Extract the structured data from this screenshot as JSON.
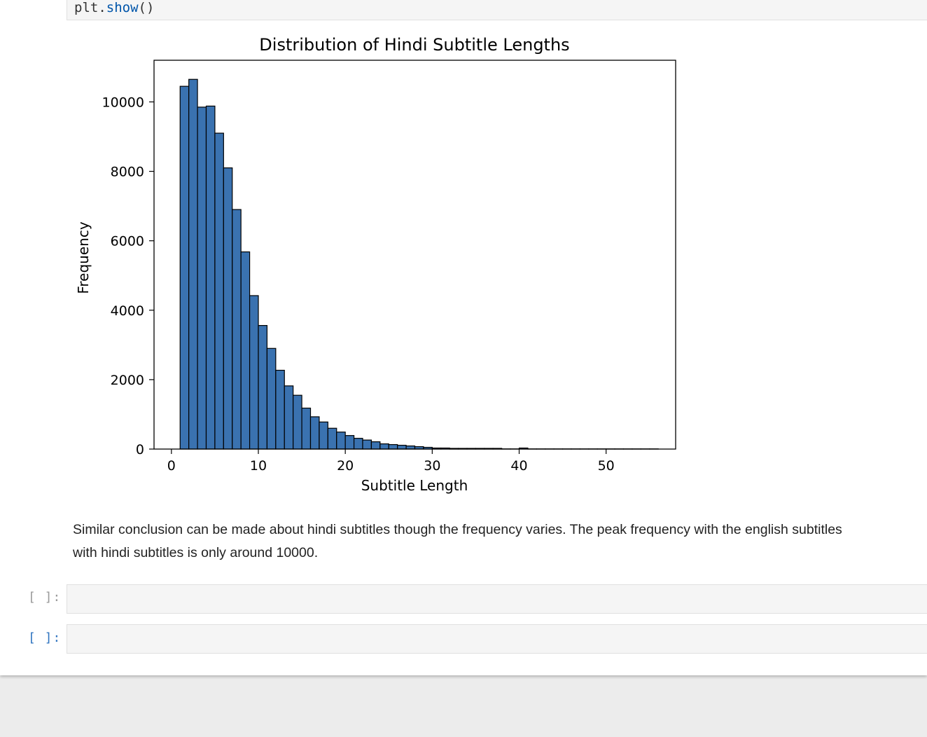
{
  "code": {
    "object": "plt",
    "dot": ".",
    "method": "show",
    "parens": "()"
  },
  "chart_data": {
    "type": "bar",
    "title": "Distribution of Hindi Subtitle Lengths",
    "xlabel": "Subtitle Length",
    "ylabel": "Frequency",
    "xlim": [
      -2,
      58
    ],
    "ylim": [
      0,
      11200
    ],
    "xticks": [
      0,
      10,
      20,
      30,
      40,
      50
    ],
    "yticks": [
      0,
      2000,
      4000,
      6000,
      8000,
      10000
    ],
    "bar_color": "#3a72b0",
    "edge_color": "#000000",
    "bin_start": 1,
    "bin_width": 1,
    "values": [
      10450,
      10650,
      9850,
      9880,
      9100,
      8100,
      6900,
      5680,
      4420,
      3560,
      2900,
      2270,
      1820,
      1550,
      1180,
      930,
      780,
      600,
      490,
      390,
      310,
      260,
      210,
      150,
      130,
      110,
      90,
      70,
      50,
      30,
      30,
      20,
      20,
      20,
      20,
      20,
      20,
      5,
      5,
      30,
      5,
      5,
      5,
      5,
      5,
      5,
      5,
      5,
      5,
      5,
      5,
      5,
      5,
      5,
      5
    ]
  },
  "markdown": {
    "line1": "Similar conclusion can be made about hindi subtitles though the frequency varies. The peak frequency with the english subtitles",
    "line2": "with hindi subtitles is only around 10000."
  },
  "cells": [
    {
      "prompt": "[ ]:"
    },
    {
      "prompt": "[ ]:"
    }
  ]
}
